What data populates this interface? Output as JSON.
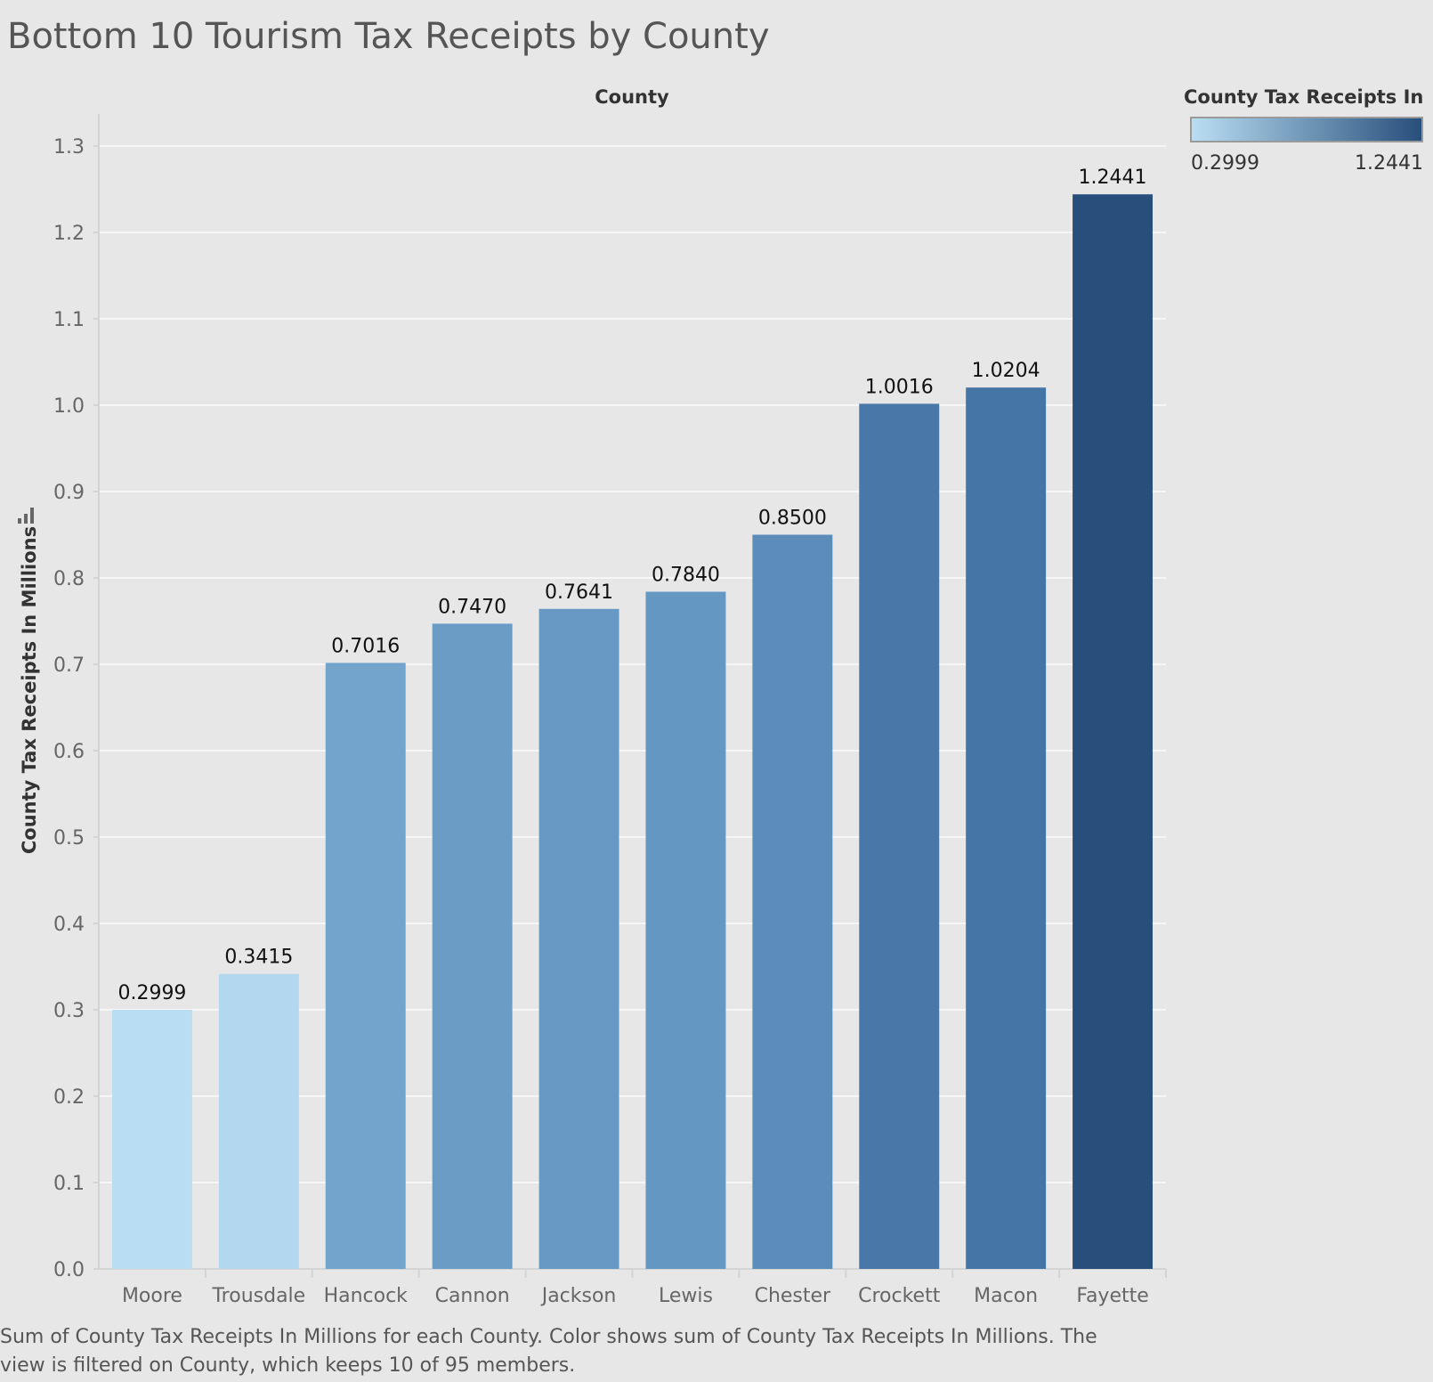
{
  "title": "Bottom 10 Tourism Tax Receipts by County",
  "legend": {
    "title": "County Tax Receipts In ..",
    "min_label": "0.2999",
    "max_label": "1.2441",
    "color_low": "#b9def3",
    "color_high": "#284f7b"
  },
  "caption": "Sum of County Tax Receipts In Millions for each County.  Color shows sum of County Tax Receipts In Millions. The view is filtered on County, which keeps 10 of 95 members.",
  "icons": {
    "sort": "sort-descending-bars-icon"
  },
  "chart_data": {
    "type": "bar",
    "title": "Bottom 10 Tourism Tax Receipts by County",
    "column_header": "County",
    "xlabel": "",
    "ylabel": "County Tax Receipts In Millions",
    "categories": [
      "Moore",
      "Trousdale",
      "Hancock",
      "Cannon",
      "Jackson",
      "Lewis",
      "Chester",
      "Crockett",
      "Macon",
      "Fayette"
    ],
    "values": [
      0.2999,
      0.3415,
      0.7016,
      0.747,
      0.7641,
      0.784,
      0.85,
      1.0016,
      1.0204,
      1.2441
    ],
    "value_labels": [
      "0.2999",
      "0.3415",
      "0.7016",
      "0.7470",
      "0.7641",
      "0.7840",
      "0.8500",
      "1.0016",
      "1.0204",
      "1.2441"
    ],
    "bar_colors": [
      "#b9def3",
      "#b2d7ef",
      "#72a4cc",
      "#6a9cc6",
      "#6899c4",
      "#6597c3",
      "#5b8cba",
      "#4977a8",
      "#4574a6",
      "#284f7b"
    ],
    "ylim": [
      0,
      1.3
    ],
    "yticks": [
      "0.0",
      "0.1",
      "0.2",
      "0.3",
      "0.4",
      "0.5",
      "0.6",
      "0.7",
      "0.8",
      "0.9",
      "1.0",
      "1.1",
      "1.2",
      "1.3"
    ],
    "grid": true,
    "legend_position": "top-right"
  }
}
